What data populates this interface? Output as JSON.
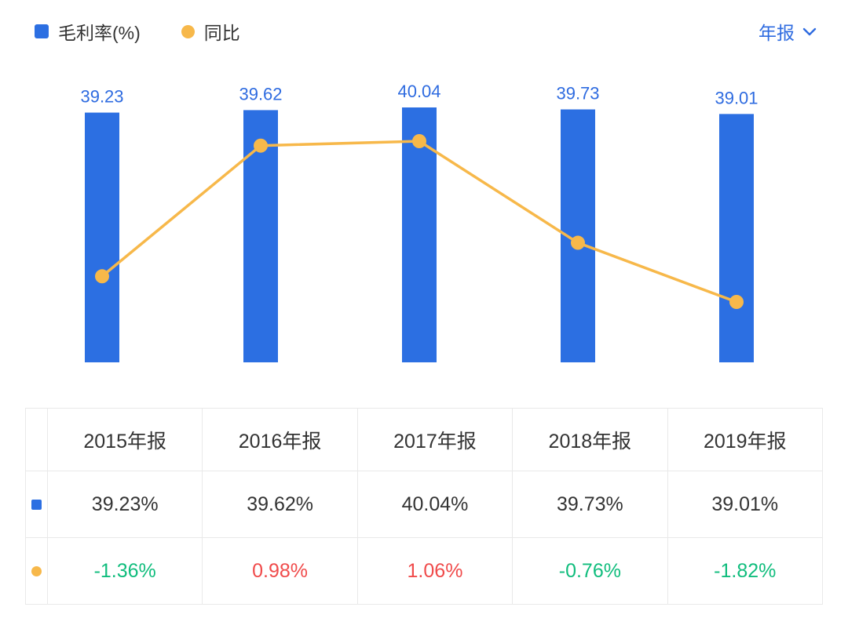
{
  "header": {
    "legend": [
      {
        "label": "毛利率(%)",
        "marker": "square",
        "color": "#2c6fe2"
      },
      {
        "label": "同比",
        "marker": "circle",
        "color": "#f7b84a"
      }
    ],
    "period_selector": {
      "label": "年报"
    }
  },
  "chart_data": {
    "type": "bar",
    "categories": [
      "2015年报",
      "2016年报",
      "2017年报",
      "2018年报",
      "2019年报"
    ],
    "series": [
      {
        "name": "毛利率(%)",
        "type": "bar",
        "color": "#2c6fe2",
        "values": [
          39.23,
          39.62,
          40.04,
          39.73,
          39.01
        ],
        "labels": [
          "39.23",
          "39.62",
          "40.04",
          "39.73",
          "39.01"
        ]
      },
      {
        "name": "同比",
        "type": "line",
        "color": "#f7b84a",
        "values": [
          -1.36,
          0.98,
          1.06,
          -0.76,
          -1.82
        ]
      }
    ],
    "title": "",
    "xlabel": "",
    "ylabel": "",
    "grid": false,
    "legend_position": "top-left",
    "bar_label_color": "#2e6be0"
  },
  "table": {
    "header": [
      "2015年报",
      "2016年报",
      "2017年报",
      "2018年报",
      "2019年报"
    ],
    "rows": [
      {
        "name": "毛利率(%)",
        "marker": "square",
        "color": "#2c6fe2",
        "values": [
          "39.23%",
          "39.62%",
          "40.04%",
          "39.73%",
          "39.01%"
        ]
      },
      {
        "name": "同比",
        "marker": "circle",
        "color": "#f7b84a",
        "values": [
          "-1.36%",
          "0.98%",
          "1.06%",
          "-0.76%",
          "-1.82%"
        ],
        "value_colors": [
          "#10bd7d",
          "#f04b4b",
          "#f04b4b",
          "#10bd7d",
          "#10bd7d"
        ]
      }
    ]
  },
  "colors": {
    "accent_blue": "#2e6be0",
    "bar_blue": "#2c6fe2",
    "line_orange": "#f7b84a",
    "positive_red": "#f04b4b",
    "negative_green": "#10bd7d",
    "table_border": "#e9e9e9",
    "text_dark": "#333333"
  }
}
